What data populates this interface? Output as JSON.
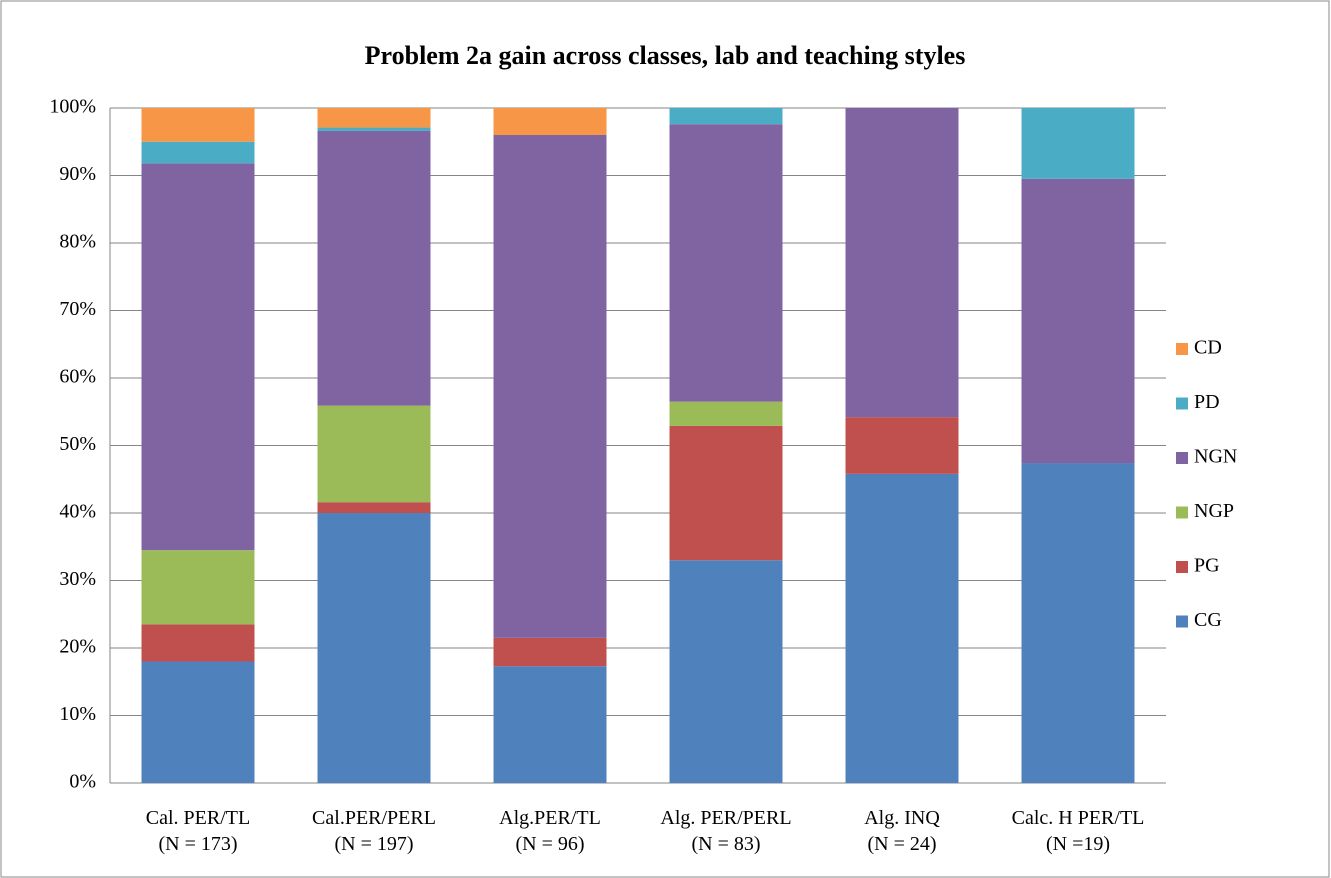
{
  "chart_data": {
    "type": "stacked_bar",
    "title": "Problem 2a gain across classes, lab and teaching styles",
    "categories": [
      "Cal. PER/TL\n(N = 173)",
      "Cal.PER/PERL\n(N = 197)",
      "Alg.PER/TL\n(N = 96)",
      "Alg. PER/PERL\n(N = 83)",
      "Alg. INQ\n(N = 24)",
      "Calc. H PER/TL\n(N =19)"
    ],
    "series": [
      {
        "name": "CG",
        "color": "#4f81bd",
        "values": [
          18,
          40,
          17.3,
          33,
          45.8,
          47.4
        ]
      },
      {
        "name": "PG",
        "color": "#c0504d",
        "values": [
          5.5,
          1.6,
          4.2,
          19.9,
          8.4,
          0
        ]
      },
      {
        "name": "NGP",
        "color": "#9bbb59",
        "values": [
          11,
          14.3,
          0,
          3.6,
          0,
          0
        ]
      },
      {
        "name": "NGN",
        "color": "#8064a2",
        "values": [
          57.3,
          40.7,
          74.5,
          41.1,
          45.8,
          42.1
        ]
      },
      {
        "name": "PD",
        "color": "#4bacc6",
        "values": [
          3.2,
          0.5,
          0,
          2.4,
          0,
          10.5
        ]
      },
      {
        "name": "CD",
        "color": "#f79646",
        "values": [
          5,
          2.9,
          4,
          0,
          0,
          0
        ]
      }
    ],
    "ylim": [
      0,
      100
    ],
    "yticks": [
      {
        "value": 0,
        "label": "0%"
      },
      {
        "value": 10,
        "label": "10%"
      },
      {
        "value": 20,
        "label": "20%"
      },
      {
        "value": 30,
        "label": "30%"
      },
      {
        "value": 40,
        "label": "40%"
      },
      {
        "value": 50,
        "label": "50%"
      },
      {
        "value": 60,
        "label": "60%"
      },
      {
        "value": 70,
        "label": "70%"
      },
      {
        "value": 80,
        "label": "80%"
      },
      {
        "value": 90,
        "label": "90%"
      },
      {
        "value": 100,
        "label": "100%"
      }
    ],
    "grid": true,
    "legend": "right"
  }
}
